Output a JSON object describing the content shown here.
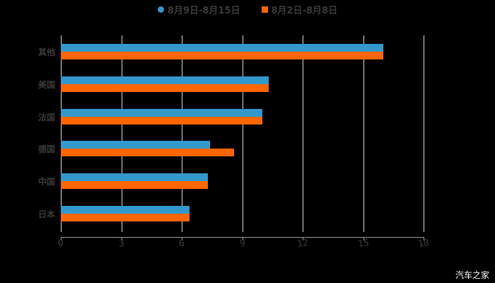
{
  "chart_data": {
    "type": "bar",
    "orientation": "horizontal",
    "title": "",
    "categories": [
      "其他",
      "美国",
      "法国",
      "德国",
      "中国",
      "日本"
    ],
    "series": [
      {
        "name": "8月9日-8月15日",
        "color": "#3399cc",
        "values": [
          16,
          10.3,
          10,
          7.4,
          7.3,
          6.4
        ]
      },
      {
        "name": "8月2日-8月8日",
        "color": "#ff6600",
        "values": [
          16,
          10.3,
          10,
          8.6,
          7.3,
          6.4
        ]
      }
    ],
    "xlabel": "",
    "ylabel": "",
    "xlim": [
      0,
      18
    ],
    "xticks": [
      "0",
      "3",
      "6",
      "9",
      "12",
      "15",
      "18"
    ],
    "grid": true,
    "legend_position": "top"
  },
  "legend": {
    "series1": "8月9日-8月15日",
    "series2": "8月2日-8月8日"
  },
  "watermark": "汽车之家"
}
